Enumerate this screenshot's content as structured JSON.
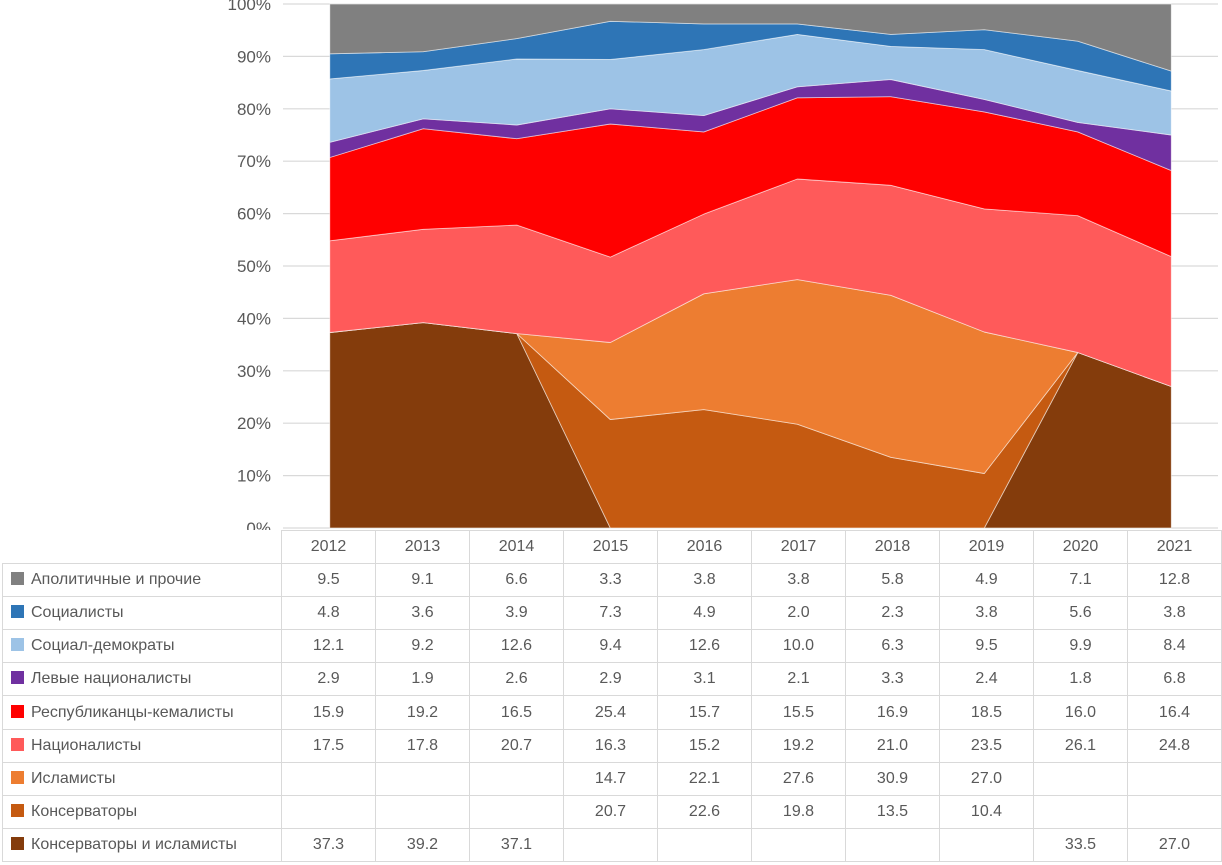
{
  "chart_data": {
    "type": "area",
    "subtype": "100%-stacked",
    "title": "",
    "xlabel": "",
    "ylabel": "",
    "ylim": [
      0,
      100
    ],
    "grid": true,
    "y_ticks": [
      "0%",
      "10%",
      "20%",
      "30%",
      "40%",
      "50%",
      "60%",
      "70%",
      "80%",
      "90%",
      "100%"
    ],
    "legend_position": "table-left",
    "categories": [
      "2012",
      "2013",
      "2014",
      "2015",
      "2016",
      "2017",
      "2018",
      "2019",
      "2020",
      "2021"
    ],
    "series": [
      {
        "name": "Аполитичные и прочие",
        "color": "#808080",
        "values": [
          9.5,
          9.1,
          6.6,
          3.3,
          3.8,
          3.8,
          5.8,
          4.9,
          7.1,
          12.8
        ]
      },
      {
        "name": "Социалисты",
        "color": "#2E75B6",
        "values": [
          4.8,
          3.6,
          3.9,
          7.3,
          4.9,
          2.0,
          2.3,
          3.8,
          5.6,
          3.8
        ]
      },
      {
        "name": "Социал-демократы",
        "color": "#9DC3E6",
        "values": [
          12.1,
          9.2,
          12.6,
          9.4,
          12.6,
          10.0,
          6.3,
          9.5,
          9.9,
          8.4
        ]
      },
      {
        "name": "Левые националисты",
        "color": "#7030A0",
        "values": [
          2.9,
          1.9,
          2.6,
          2.9,
          3.1,
          2.1,
          3.3,
          2.4,
          1.8,
          6.8
        ]
      },
      {
        "name": "Республиканцы-кемалисты",
        "color": "#FF0000",
        "values": [
          15.9,
          19.2,
          16.5,
          25.4,
          15.7,
          15.5,
          16.9,
          18.5,
          16.0,
          16.4
        ]
      },
      {
        "name": "Националисты",
        "color": "#FF5A5A",
        "values": [
          17.5,
          17.8,
          20.7,
          16.3,
          15.2,
          19.2,
          21.0,
          23.5,
          26.1,
          24.8
        ]
      },
      {
        "name": "Исламисты",
        "color": "#ED7D31",
        "values": [
          null,
          null,
          null,
          14.7,
          22.1,
          27.6,
          30.9,
          27.0,
          null,
          null
        ]
      },
      {
        "name": "Консерваторы",
        "color": "#C55A11",
        "values": [
          null,
          null,
          null,
          20.7,
          22.6,
          19.8,
          13.5,
          10.4,
          null,
          null
        ]
      },
      {
        "name": "Консерваторы и исламисты",
        "color": "#843C0C",
        "values": [
          37.3,
          39.2,
          37.1,
          null,
          null,
          null,
          null,
          null,
          33.5,
          27.0
        ]
      }
    ],
    "data_table": {
      "shown": true,
      "value_format": "0.0",
      "corner_label": ""
    }
  },
  "palette": {
    "gridline": "#D9D9D9",
    "table_border": "#D9D9D9",
    "axis_text": "#595959",
    "table_text": "#595959",
    "background": "#FFFFFF",
    "area_edge": "rgba(255,255,255,0.55)"
  }
}
